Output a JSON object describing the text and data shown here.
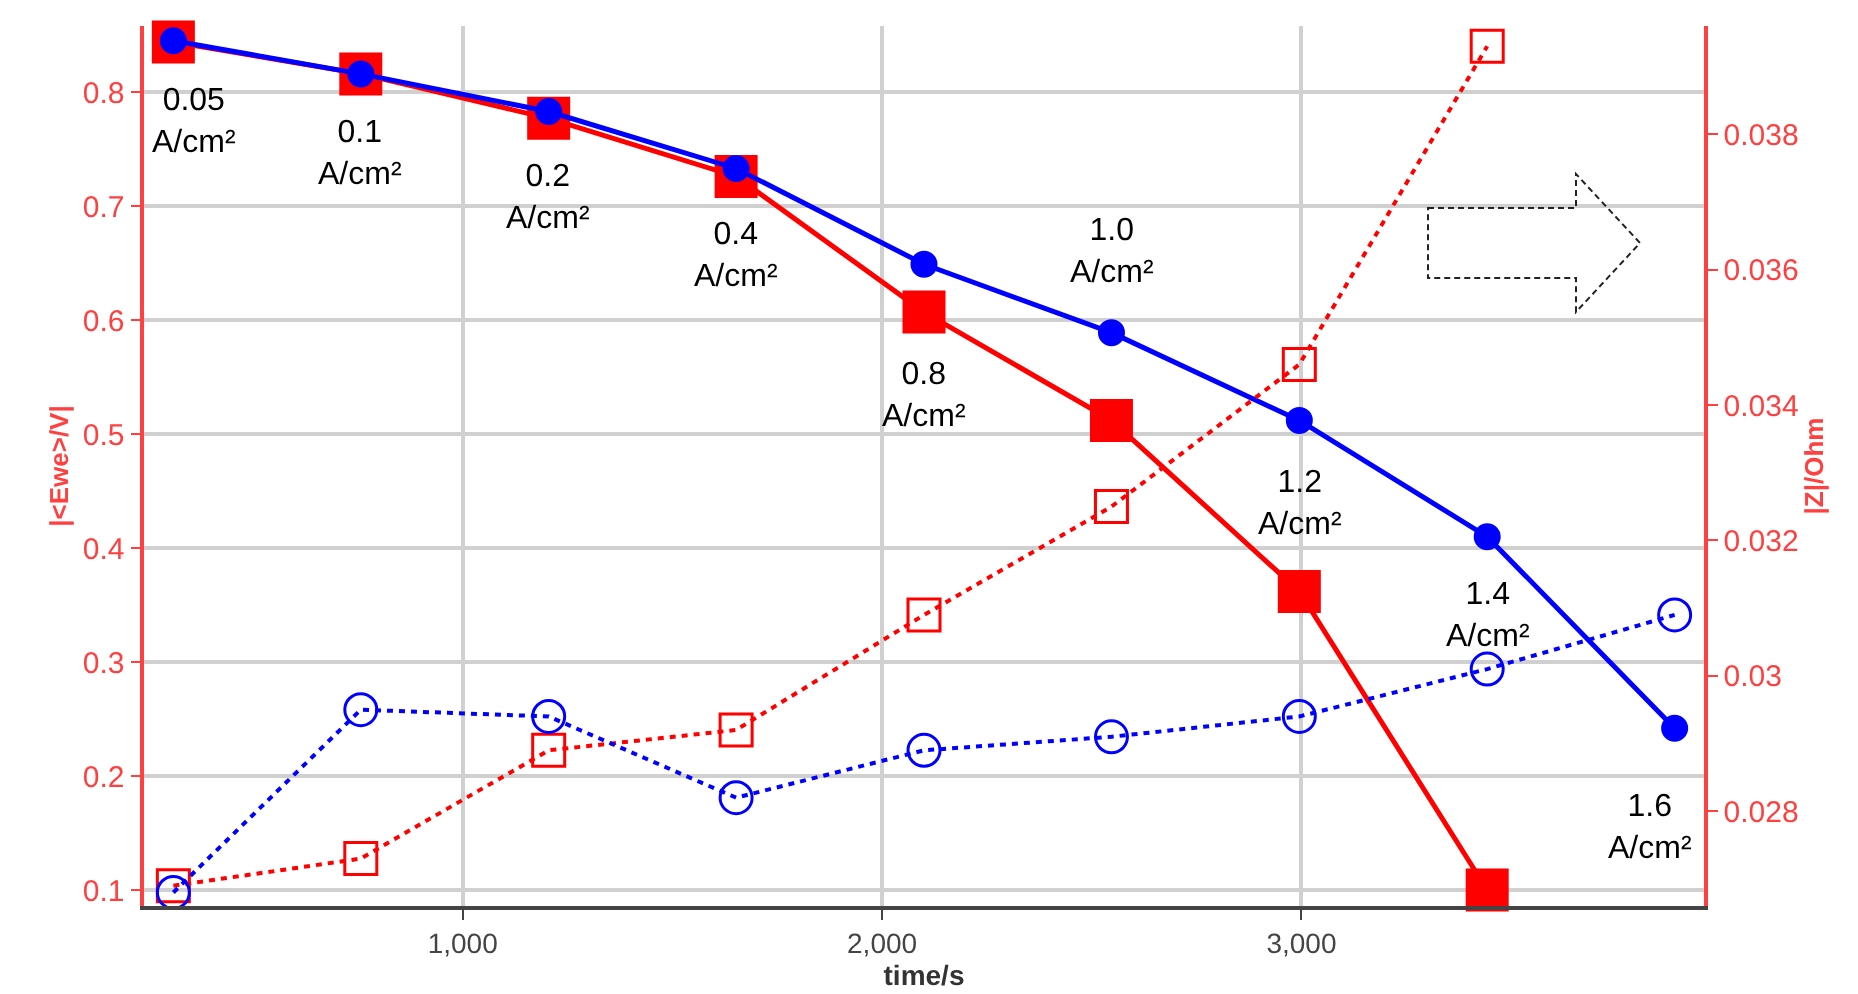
{
  "chart_data": {
    "type": "line",
    "xlabel": "time/s",
    "ylabel": "|<Ewe>/V|",
    "y2label": "|Z|/Ohm",
    "xlim": [
      240,
      3960
    ],
    "xticks": [
      {
        "value": 1000,
        "label": "1,000"
      },
      {
        "value": 2000,
        "label": "2,000"
      },
      {
        "value": 3000,
        "label": "3,000"
      }
    ],
    "ylim": [
      0.086,
      0.858
    ],
    "yticks": [
      0.1,
      0.2,
      0.3,
      0.4,
      0.5,
      0.6,
      0.7,
      0.8
    ],
    "y2lim": [
      0.0266,
      0.0396
    ],
    "y2ticks": [
      0.028,
      0.03,
      0.032,
      0.034,
      0.036,
      0.038
    ],
    "grid": true,
    "series": [
      {
        "color": "#ff0000",
        "marker": "square",
        "line_style": "solid",
        "x": [
          310,
          757,
          1205,
          1652,
          2100,
          2547,
          2995,
          3443
        ],
        "values": [
          0.844,
          0.816,
          0.777,
          0.726,
          0.607,
          0.512,
          0.362,
          0.1
        ]
      },
      {
        "color": "#0000ff",
        "marker": "circle",
        "line_style": "solid",
        "x": [
          310,
          757,
          1205,
          1652,
          2100,
          2547,
          2995,
          3443,
          3890
        ],
        "values": [
          0.845,
          0.816,
          0.783,
          0.733,
          0.649,
          0.589,
          0.512,
          0.41,
          0.242
        ]
      },
      {
        "color": "#ff0000",
        "marker": "square",
        "line_style": "dotted",
        "axis": "y2",
        "x": [
          310,
          757,
          1205,
          1652,
          2100,
          2547,
          2995,
          3443
        ],
        "values": [
          0.0269,
          0.0273,
          0.0289,
          0.0292,
          0.0309,
          0.0325,
          0.0346,
          0.0393
        ]
      },
      {
        "color": "#0000ff",
        "marker": "circle",
        "line_style": "dotted",
        "axis": "y2",
        "x": [
          310,
          757,
          1205,
          1652,
          2100,
          2547,
          2995,
          3443,
          3890
        ],
        "values": [
          0.0268,
          0.0295,
          0.0294,
          0.0282,
          0.0289,
          0.0291,
          0.0294,
          0.0301,
          0.0309
        ]
      }
    ],
    "annotations": [
      {
        "text": "0.05\nA/cm²",
        "x": 310,
        "y": 0.844
      },
      {
        "text": "0.1\nA/cm²",
        "x": 757,
        "y": 0.816
      },
      {
        "text": "0.2\nA/cm²",
        "x": 1205,
        "y": 0.777
      },
      {
        "text": "0.4\nA/cm²",
        "x": 1652,
        "y": 0.726
      },
      {
        "text": "0.8\nA/cm²",
        "x": 2100,
        "y": 0.607
      },
      {
        "text": "1.0\nA/cm²",
        "x": 2547,
        "y": 0.589
      },
      {
        "text": "1.2\nA/cm²",
        "x": 2995,
        "y": 0.512
      },
      {
        "text": "1.4\nA/cm²",
        "x": 3443,
        "y": 0.41
      },
      {
        "text": "1.6\nA/cm²",
        "x": 3890,
        "y": 0.242
      }
    ]
  }
}
